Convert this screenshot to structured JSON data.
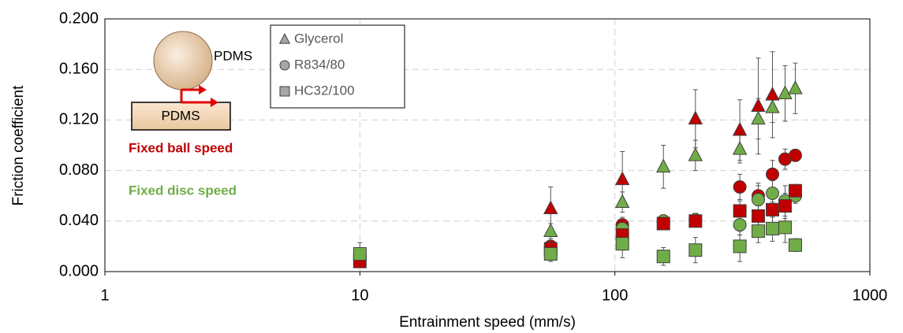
{
  "chart_data": {
    "type": "scatter",
    "xlabel": "Entrainment speed (mm/s)",
    "ylabel": "Friction coefficient",
    "xscale": "log",
    "xlim": [
      1,
      1000
    ],
    "xticks": [
      1,
      10,
      100,
      1000
    ],
    "ylim": [
      0,
      0.2
    ],
    "yticks": [
      {
        "value": 0,
        "label": "0.000"
      },
      {
        "value": 0.04,
        "label": "0.040"
      },
      {
        "value": 0.08,
        "label": "0.080"
      },
      {
        "value": 0.12,
        "label": "0.120"
      },
      {
        "value": 0.16,
        "label": "0.160"
      },
      {
        "value": 0.2,
        "label": "0.200"
      }
    ],
    "grid": true,
    "legend": [
      {
        "name": "Glycerol",
        "marker": "triangle"
      },
      {
        "name": "R834/80",
        "marker": "circle"
      },
      {
        "name": "HC32/100",
        "marker": "square"
      }
    ],
    "annotations": [
      {
        "text": "Fixed ball speed",
        "color": "#c00000"
      },
      {
        "text": "Fixed disc speed",
        "color": "#70ad47"
      }
    ],
    "series": [
      {
        "marker": "triangle",
        "color": "#c00000",
        "x": [
          56,
          107,
          207,
          309,
          365,
          415
        ],
        "values": [
          0.05,
          0.073,
          0.121,
          0.112,
          0.131,
          0.14
        ],
        "errors": [
          0.017,
          0.022,
          0.023,
          0.024,
          0.038,
          0.034
        ]
      },
      {
        "marker": "triangle",
        "color": "#70ad47",
        "x": [
          56,
          107,
          155,
          207,
          309,
          365,
          415,
          465,
          510
        ],
        "values": [
          0.032,
          0.055,
          0.083,
          0.092,
          0.097,
          0.121,
          0.13,
          0.141,
          0.145
        ],
        "errors": [
          0.006,
          0.008,
          0.017,
          0.012,
          0.011,
          0.016,
          0.012,
          0.022,
          0.02
        ]
      },
      {
        "marker": "circle",
        "color": "#c00000",
        "x": [
          56,
          107,
          155,
          207,
          309,
          365,
          415,
          465,
          510
        ],
        "values": [
          0.02,
          0.037,
          0.039,
          0.041,
          0.067,
          0.06,
          0.077,
          0.089,
          0.092
        ],
        "errors": [
          0.004,
          0.006,
          0.004,
          0.005,
          0.01,
          0.008,
          0.011,
          0.008,
          0.004
        ]
      },
      {
        "marker": "circle",
        "color": "#70ad47",
        "x": [
          56,
          107,
          155,
          207,
          309,
          365,
          415,
          465,
          510
        ],
        "values": [
          0.018,
          0.034,
          0.04,
          0.041,
          0.037,
          0.057,
          0.062,
          0.056,
          0.06
        ],
        "errors": [
          0.004,
          0.005,
          0.005,
          0.005,
          0.008,
          0.013,
          0.01,
          0.012,
          0.006
        ]
      },
      {
        "marker": "square",
        "color": "#c00000",
        "x": [
          10,
          56,
          107,
          155,
          207,
          309,
          365,
          415,
          465,
          510
        ],
        "values": [
          0.008,
          0.018,
          0.029,
          0.038,
          0.04,
          0.048,
          0.044,
          0.049,
          0.052,
          0.064
        ],
        "errors": [
          0.004,
          0.003,
          0.005,
          0.004,
          0.004,
          0.008,
          0.008,
          0.006,
          0.01,
          0.005
        ]
      },
      {
        "marker": "square",
        "color": "#70ad47",
        "x": [
          10,
          56,
          107,
          155,
          207,
          309,
          365,
          415,
          465,
          510
        ],
        "values": [
          0.014,
          0.014,
          0.022,
          0.012,
          0.017,
          0.02,
          0.032,
          0.034,
          0.035,
          0.021
        ],
        "errors": [
          0.009,
          0.006,
          0.011,
          0.007,
          0.01,
          0.012,
          0.009,
          0.01,
          0.012,
          0.005
        ]
      }
    ]
  },
  "inset": {
    "ball_label": "PDMS",
    "disc_label": "PDMS"
  }
}
